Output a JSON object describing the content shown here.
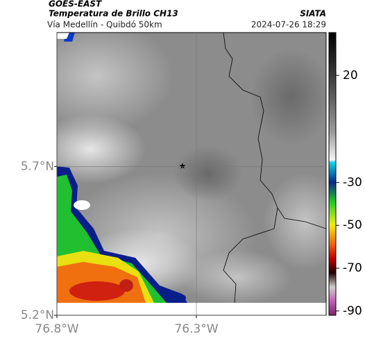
{
  "map": {
    "title": "GOES-EAST",
    "subtitle": "Temperatura de Brillo CH13",
    "region": "Vía Medellín - Quibdó 50km",
    "source": "SIATA",
    "datetime": "2024-07-26 18:29",
    "xlim": [
      -76.8,
      -75.835
    ],
    "ylim": [
      5.2,
      6.15
    ],
    "xticks": [
      {
        "value": -76.8,
        "label": "76.8°W"
      },
      {
        "value": -76.3,
        "label": "76.3°W"
      }
    ],
    "yticks": [
      {
        "value": 5.2,
        "label": "5.2°N"
      },
      {
        "value": 5.7,
        "label": "5.7°N"
      }
    ],
    "grid": true,
    "colorbar": {
      "lim": [
        -92,
        40
      ],
      "ticks": [
        20,
        -30,
        -50,
        -70,
        -90
      ]
    }
  }
}
